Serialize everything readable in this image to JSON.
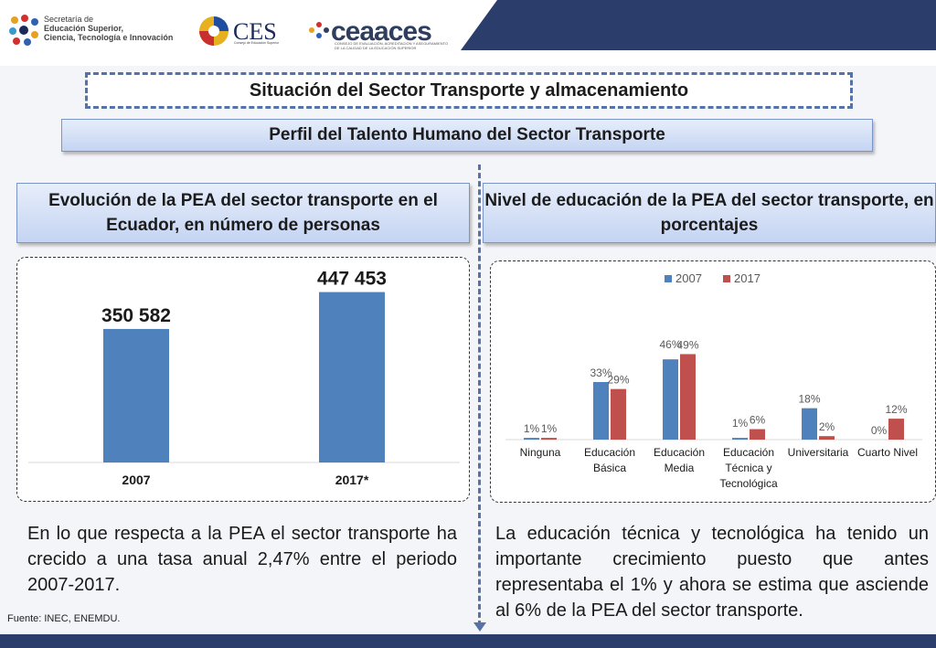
{
  "header": {
    "logo1_line1": "Secretaría de",
    "logo1_line2": "Educación Superior,",
    "logo1_line3": "Ciencia, Tecnología e Innovación",
    "ces": "CES",
    "ces_sub": "Consejo de Educación Superior",
    "ceaaces": "ceaaces",
    "ceaaces_sub": "CONSEJO DE EVALUACIÓN, ACREDITACIÓN Y ASEGURAMIENTO DE LA CALIDAD DE LA EDUCACIÓN SUPERIOR",
    "band_color": "#2a3d6b"
  },
  "main_title": "Situación del Sector Transporte y almacenamiento",
  "sub_title": "Perfil del Talento Humano del Sector Transporte",
  "left_title": "Evolución de la PEA del sector transporte en el Ecuador, en número de personas",
  "right_title": "Nivel de educación de la PEA del sector transporte, en porcentajes",
  "left_text": "En lo que respecta a la PEA el sector transporte ha crecido a una tasa anual 2,47% entre el periodo 2007-2017.",
  "right_text": "La educación técnica y tecnológica ha tenido un importante crecimiento puesto que antes representaba el 1% y ahora se estima que asciende al 6% de la PEA del sector transporte.",
  "source": "Fuente: INEC, ENEMDU.",
  "chart_data": [
    {
      "type": "bar",
      "categories": [
        "2007",
        "2017*"
      ],
      "values": [
        350582,
        447453
      ],
      "data_labels": [
        "350 582",
        "447 453"
      ],
      "ylim": [
        0,
        480000
      ],
      "color": "#4f81bd",
      "grid": false
    },
    {
      "type": "bar",
      "categories": [
        "Ninguna",
        "Educación Básica",
        "Educación Media",
        "Educación Técnica y Tecnológica",
        "Universitaria",
        "Cuarto Nivel"
      ],
      "category_lines": [
        [
          "Ninguna"
        ],
        [
          "Educación",
          "Básica"
        ],
        [
          "Educación",
          "Media"
        ],
        [
          "Educación",
          "Técnica y",
          "Tecnológica"
        ],
        [
          "Universitaria"
        ],
        [
          "Cuarto Nivel"
        ]
      ],
      "series": [
        {
          "name": "2007",
          "values": [
            1,
            33,
            46,
            1,
            18,
            0
          ],
          "labels": [
            "1%",
            "33%",
            "46%",
            "1%",
            "18%",
            "0%"
          ],
          "color": "#4f81bd"
        },
        {
          "name": "2017",
          "values": [
            1,
            29,
            49,
            6,
            2,
            12
          ],
          "labels": [
            "1%",
            "29%",
            "49%",
            "6%",
            "2%",
            "12%"
          ],
          "color": "#c0504d"
        }
      ],
      "ylim": [
        0,
        55
      ],
      "legend": "top-center",
      "grid": false
    }
  ]
}
